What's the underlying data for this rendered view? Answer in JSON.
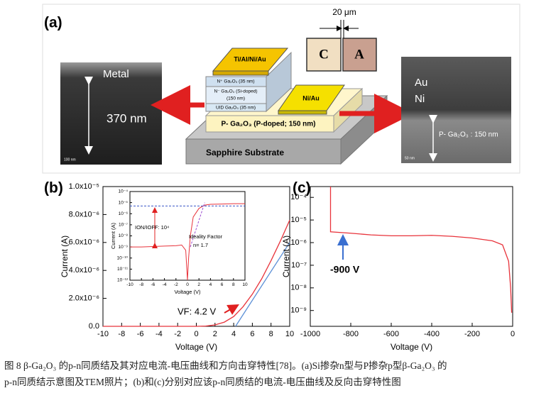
{
  "panel_a": {
    "label": "(a)",
    "left_image": {
      "metal": "Metal",
      "thickness": "370 nm",
      "scale": "100 nm"
    },
    "device": {
      "contact_top": "Ti/Al/Ni/Au",
      "n_plus": "N⁺ Ga₂O₃ (35 nm)",
      "n_minus": "N⁻ Ga₂O₃ (Si-doped)",
      "n_minus_thickness": "(150 nm)",
      "uid": "UID Ga₂O₃ (35 nm)",
      "contact_p": "Ni/Au",
      "p_layer": "P- Ga₂O₃ (P-doped; 150 nm)",
      "substrate": "Sapphire Substrate"
    },
    "pads": {
      "scale": "20 μm",
      "cathode": "C",
      "anode": "A"
    },
    "right_image": {
      "au": "Au",
      "ni": "Ni",
      "p_layer": "P- Ga₂O₃ : 150 nm",
      "scale": "50 nm"
    }
  },
  "chart_data": [
    {
      "type": "line",
      "panel_label": "(b)",
      "x_label": "Voltage (V)",
      "y_label": "Current (A)",
      "xlim": [
        -10,
        10
      ],
      "xticks": [
        -10,
        -8,
        -6,
        -4,
        -2,
        0,
        2,
        4,
        6,
        8,
        10
      ],
      "ylim": [
        0,
        1e-05
      ],
      "yticks": [
        {
          "value": 0,
          "label": "0.0"
        },
        {
          "value": 2e-06,
          "label": "2.0x10⁻⁶"
        },
        {
          "value": 4e-06,
          "label": "4.0x10⁻⁶"
        },
        {
          "value": 6e-06,
          "label": "6.0x10⁻⁶"
        },
        {
          "value": 8e-06,
          "label": "8.0x10⁻⁶"
        },
        {
          "value": 1e-05,
          "label": "1.0x10⁻⁵"
        }
      ],
      "log_y": false,
      "series": [
        {
          "color": "#e8333b",
          "x": [
            -10,
            -8,
            -6,
            -4,
            -2,
            0,
            1,
            2,
            3,
            4,
            5,
            6,
            7,
            8,
            9,
            10
          ],
          "values": [
            0,
            0,
            0,
            0,
            0,
            0,
            2e-08,
            1e-07,
            3e-07,
            7e-07,
            1.4e-06,
            2.3e-06,
            3.4e-06,
            4.7e-06,
            6.1e-06,
            7.6e-06
          ],
          "dashed": false
        },
        {
          "color": "#5b8fd6",
          "x": [
            4.2,
            10
          ],
          "values": [
            0,
            6e-06
          ],
          "dashed": false
        }
      ],
      "annotations": [
        "VF: 4.2 V"
      ]
    },
    {
      "type": "line",
      "x_label": "Voltage (V)",
      "y_label": "Current (A)",
      "xlim": [
        -10,
        10
      ],
      "xticks": [
        -10,
        -8,
        -6,
        -4,
        -2,
        0,
        2,
        4,
        6,
        8,
        10
      ],
      "ylim": [
        1e-12,
        0.0001
      ],
      "yticks": [
        {
          "value": 0.0001,
          "label": "10⁻⁴"
        },
        {
          "value": 1e-05,
          "label": "10⁻⁵"
        },
        {
          "value": 1e-06,
          "label": "10⁻⁶"
        },
        {
          "value": 1e-07,
          "label": "10⁻⁷"
        },
        {
          "value": 1e-08,
          "label": "10⁻⁸"
        },
        {
          "value": 1e-09,
          "label": "10⁻⁹"
        },
        {
          "value": 1e-10,
          "label": "10⁻¹⁰"
        },
        {
          "value": 1e-11,
          "label": "10⁻¹¹"
        },
        {
          "value": 1e-12,
          "label": "10⁻¹²"
        }
      ],
      "log_y": true,
      "series": [
        {
          "color": "#e8333b",
          "x": [
            -10,
            -8,
            -6,
            -4,
            -2,
            -1,
            -0.3,
            0,
            0.2,
            0.5,
            1,
            2,
            3,
            4,
            6,
            8,
            10
          ],
          "values": [
            1e-09,
            1e-09,
            1.1e-09,
            1.2e-09,
            1.3e-09,
            1.5e-09,
            5e-10,
            1e-12,
            1e-10,
            1e-08,
            5e-07,
            3e-06,
            6e-06,
            7e-06,
            7.5e-06,
            8e-06,
            8e-06
          ],
          "dashed": false
        },
        {
          "color": "#3a55c8",
          "x": [
            -10,
            10
          ],
          "values": [
            5e-06,
            5e-06
          ],
          "dashed": true
        },
        {
          "color": "#9a4ad0",
          "x": [
            0.5,
            3
          ],
          "values": [
            1e-09,
            1e-05
          ],
          "dashed": true
        }
      ],
      "annotations": [
        "ION/IOFF: 10⁴",
        "Ideality Factor",
        "n= 1.7"
      ]
    },
    {
      "type": "line",
      "panel_label": "(c)",
      "x_label": "Voltage (V)",
      "y_label": "Current (A)",
      "xlim": [
        -1000,
        0
      ],
      "xticks": [
        -1000,
        -800,
        -600,
        -400,
        -200,
        0
      ],
      "ylim": [
        2e-10,
        0.0003
      ],
      "yticks": [
        {
          "value": 0.0001,
          "label": "10⁻⁴"
        },
        {
          "value": 1e-05,
          "label": "10⁻⁵"
        },
        {
          "value": 1e-06,
          "label": "10⁻⁶"
        },
        {
          "value": 1e-07,
          "label": "10⁻⁷"
        },
        {
          "value": 1e-08,
          "label": "10⁻⁸"
        },
        {
          "value": 1e-09,
          "label": "10⁻⁹"
        }
      ],
      "log_y": true,
      "series": [
        {
          "color": "#e8333b",
          "x": [
            -900,
            -900,
            -800,
            -700,
            -600,
            -500,
            -400,
            -300,
            -200,
            -100,
            -50,
            -20,
            -10,
            -5
          ],
          "values": [
            0.0003,
            3e-06,
            2.6e-06,
            2.2e-06,
            2e-06,
            2e-06,
            2.1e-06,
            1.9e-06,
            1.6e-06,
            1.2e-06,
            8e-07,
            1.5e-07,
            1e-08,
            8e-10
          ],
          "dashed": false
        }
      ],
      "annotations": [
        "-900 V"
      ]
    }
  ],
  "caption": [
    "图 8  β-Ga₂O₃ 的p-n同质结及其对应电流-电压曲线和方向击穿特性[78]。(a)Si掺杂n型与P掺杂p型β-Ga₂O₃ 的",
    "p-n同质结示意图及TEM照片；(b)和(c)分别对应该p-n同质结的电流-电压曲线及反向击穿特性图"
  ]
}
